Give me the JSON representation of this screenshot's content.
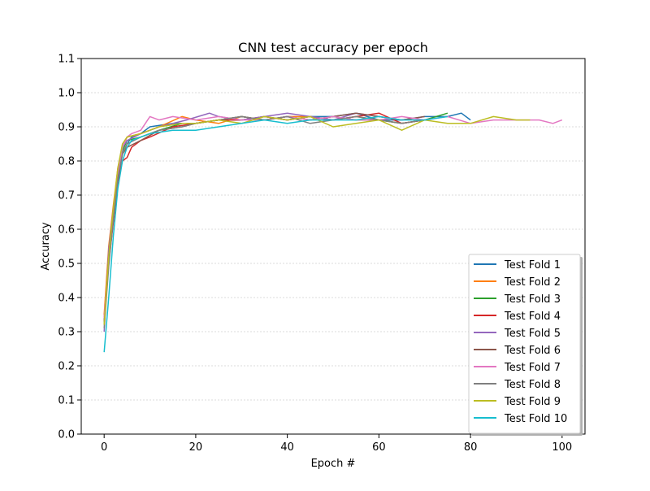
{
  "chart_data": {
    "type": "line",
    "title": "CNN test accuracy per epoch",
    "xlabel": "Epoch #",
    "ylabel": "Accuracy",
    "xlim": [
      -5,
      105
    ],
    "ylim": [
      0.0,
      1.1
    ],
    "xticks": [
      0,
      20,
      40,
      60,
      80,
      100
    ],
    "yticks": [
      0.0,
      0.1,
      0.2,
      0.3,
      0.4,
      0.5,
      0.6,
      0.7,
      0.8,
      0.9,
      1.0,
      1.1
    ],
    "grid": "horizontal dotted",
    "legend_position": "lower-right",
    "series": [
      {
        "name": "Test Fold 1",
        "color": "#1f77b4",
        "points": [
          [
            0,
            0.33
          ],
          [
            1,
            0.5
          ],
          [
            2,
            0.63
          ],
          [
            3,
            0.75
          ],
          [
            4,
            0.82
          ],
          [
            5,
            0.85
          ],
          [
            6,
            0.87
          ],
          [
            8,
            0.88
          ],
          [
            10,
            0.9
          ],
          [
            15,
            0.91
          ],
          [
            20,
            0.91
          ],
          [
            25,
            0.92
          ],
          [
            30,
            0.92
          ],
          [
            35,
            0.93
          ],
          [
            40,
            0.92
          ],
          [
            45,
            0.93
          ],
          [
            50,
            0.93
          ],
          [
            55,
            0.94
          ],
          [
            60,
            0.92
          ],
          [
            65,
            0.92
          ],
          [
            70,
            0.93
          ],
          [
            75,
            0.93
          ],
          [
            78,
            0.94
          ],
          [
            80,
            0.92
          ]
        ]
      },
      {
        "name": "Test Fold 2",
        "color": "#ff7f0e",
        "points": [
          [
            0,
            0.35
          ],
          [
            1,
            0.55
          ],
          [
            2,
            0.67
          ],
          [
            3,
            0.78
          ],
          [
            4,
            0.84
          ],
          [
            5,
            0.87
          ],
          [
            8,
            0.88
          ],
          [
            12,
            0.9
          ],
          [
            17,
            0.93
          ],
          [
            20,
            0.92
          ],
          [
            25,
            0.91
          ],
          [
            30,
            0.93
          ],
          [
            35,
            0.92
          ],
          [
            40,
            0.93
          ],
          [
            45,
            0.93
          ],
          [
            50,
            0.92
          ],
          [
            55,
            0.93
          ],
          [
            60,
            0.92
          ],
          [
            65,
            0.91
          ],
          [
            70,
            0.92
          ]
        ]
      },
      {
        "name": "Test Fold 3",
        "color": "#2ca02c",
        "points": [
          [
            0,
            0.32
          ],
          [
            1,
            0.5
          ],
          [
            2,
            0.64
          ],
          [
            3,
            0.76
          ],
          [
            4,
            0.83
          ],
          [
            5,
            0.86
          ],
          [
            8,
            0.87
          ],
          [
            12,
            0.89
          ],
          [
            17,
            0.91
          ],
          [
            20,
            0.91
          ],
          [
            25,
            0.92
          ],
          [
            30,
            0.93
          ],
          [
            35,
            0.92
          ],
          [
            40,
            0.93
          ],
          [
            45,
            0.92
          ],
          [
            50,
            0.93
          ],
          [
            55,
            0.92
          ],
          [
            60,
            0.92
          ],
          [
            65,
            0.91
          ],
          [
            70,
            0.92
          ],
          [
            75,
            0.94
          ]
        ]
      },
      {
        "name": "Test Fold 4",
        "color": "#d62728",
        "points": [
          [
            0,
            0.34
          ],
          [
            1,
            0.5
          ],
          [
            2,
            0.62
          ],
          [
            3,
            0.74
          ],
          [
            4,
            0.8
          ],
          [
            5,
            0.81
          ],
          [
            6,
            0.84
          ],
          [
            8,
            0.86
          ],
          [
            10,
            0.87
          ],
          [
            15,
            0.9
          ],
          [
            20,
            0.91
          ],
          [
            25,
            0.92
          ],
          [
            30,
            0.92
          ],
          [
            35,
            0.93
          ],
          [
            40,
            0.92
          ],
          [
            45,
            0.93
          ],
          [
            50,
            0.92
          ],
          [
            55,
            0.93
          ],
          [
            60,
            0.94
          ],
          [
            65,
            0.91
          ],
          [
            70,
            0.92
          ]
        ]
      },
      {
        "name": "Test Fold 5",
        "color": "#9467bd",
        "points": [
          [
            0,
            0.3
          ],
          [
            1,
            0.54
          ],
          [
            2,
            0.66
          ],
          [
            3,
            0.77
          ],
          [
            4,
            0.84
          ],
          [
            5,
            0.86
          ],
          [
            8,
            0.88
          ],
          [
            12,
            0.9
          ],
          [
            18,
            0.92
          ],
          [
            23,
            0.94
          ],
          [
            25,
            0.93
          ],
          [
            30,
            0.92
          ],
          [
            35,
            0.93
          ],
          [
            40,
            0.94
          ],
          [
            45,
            0.93
          ],
          [
            50,
            0.92
          ],
          [
            55,
            0.94
          ],
          [
            60,
            0.93
          ],
          [
            65,
            0.92
          ]
        ]
      },
      {
        "name": "Test Fold 6",
        "color": "#8c564b",
        "points": [
          [
            0,
            0.33
          ],
          [
            1,
            0.52
          ],
          [
            2,
            0.65
          ],
          [
            3,
            0.76
          ],
          [
            4,
            0.82
          ],
          [
            5,
            0.84
          ],
          [
            8,
            0.86
          ],
          [
            12,
            0.89
          ],
          [
            17,
            0.9
          ],
          [
            20,
            0.91
          ],
          [
            25,
            0.92
          ],
          [
            30,
            0.93
          ],
          [
            35,
            0.92
          ],
          [
            40,
            0.93
          ],
          [
            45,
            0.92
          ],
          [
            50,
            0.93
          ],
          [
            55,
            0.94
          ],
          [
            60,
            0.93
          ],
          [
            65,
            0.92
          ],
          [
            70,
            0.93
          ]
        ]
      },
      {
        "name": "Test Fold 7",
        "color": "#e377c2",
        "points": [
          [
            0,
            0.34
          ],
          [
            1,
            0.51
          ],
          [
            2,
            0.64
          ],
          [
            3,
            0.76
          ],
          [
            4,
            0.84
          ],
          [
            5,
            0.87
          ],
          [
            6,
            0.88
          ],
          [
            8,
            0.89
          ],
          [
            10,
            0.93
          ],
          [
            12,
            0.92
          ],
          [
            15,
            0.93
          ],
          [
            20,
            0.92
          ],
          [
            25,
            0.93
          ],
          [
            30,
            0.92
          ],
          [
            35,
            0.92
          ],
          [
            40,
            0.93
          ],
          [
            45,
            0.92
          ],
          [
            50,
            0.93
          ],
          [
            55,
            0.92
          ],
          [
            60,
            0.92
          ],
          [
            65,
            0.93
          ],
          [
            70,
            0.92
          ],
          [
            75,
            0.93
          ],
          [
            80,
            0.91
          ],
          [
            85,
            0.92
          ],
          [
            90,
            0.92
          ],
          [
            95,
            0.92
          ],
          [
            98,
            0.91
          ],
          [
            100,
            0.92
          ]
        ]
      },
      {
        "name": "Test Fold 8",
        "color": "#7f7f7f",
        "points": [
          [
            0,
            0.31
          ],
          [
            1,
            0.49
          ],
          [
            2,
            0.63
          ],
          [
            3,
            0.75
          ],
          [
            4,
            0.82
          ],
          [
            5,
            0.85
          ],
          [
            8,
            0.87
          ],
          [
            12,
            0.89
          ],
          [
            17,
            0.9
          ],
          [
            20,
            0.91
          ],
          [
            25,
            0.92
          ],
          [
            30,
            0.93
          ],
          [
            35,
            0.92
          ],
          [
            40,
            0.93
          ],
          [
            45,
            0.91
          ],
          [
            50,
            0.92
          ],
          [
            55,
            0.93
          ],
          [
            60,
            0.92
          ],
          [
            65,
            0.91
          ],
          [
            70,
            0.92
          ]
        ]
      },
      {
        "name": "Test Fold 9",
        "color": "#bcbd22",
        "points": [
          [
            0,
            0.32
          ],
          [
            1,
            0.52
          ],
          [
            2,
            0.66
          ],
          [
            3,
            0.78
          ],
          [
            4,
            0.85
          ],
          [
            5,
            0.87
          ],
          [
            8,
            0.88
          ],
          [
            12,
            0.9
          ],
          [
            17,
            0.91
          ],
          [
            20,
            0.91
          ],
          [
            25,
            0.92
          ],
          [
            30,
            0.91
          ],
          [
            35,
            0.93
          ],
          [
            40,
            0.92
          ],
          [
            45,
            0.93
          ],
          [
            50,
            0.9
          ],
          [
            55,
            0.91
          ],
          [
            60,
            0.92
          ],
          [
            65,
            0.89
          ],
          [
            70,
            0.92
          ],
          [
            75,
            0.91
          ],
          [
            80,
            0.91
          ],
          [
            85,
            0.93
          ],
          [
            90,
            0.92
          ],
          [
            93,
            0.92
          ]
        ]
      },
      {
        "name": "Test Fold 10",
        "color": "#17becf",
        "points": [
          [
            0,
            0.24
          ],
          [
            1,
            0.4
          ],
          [
            2,
            0.58
          ],
          [
            3,
            0.72
          ],
          [
            4,
            0.8
          ],
          [
            5,
            0.84
          ],
          [
            6,
            0.86
          ],
          [
            8,
            0.87
          ],
          [
            10,
            0.88
          ],
          [
            15,
            0.89
          ],
          [
            20,
            0.89
          ],
          [
            25,
            0.9
          ],
          [
            30,
            0.91
          ],
          [
            35,
            0.92
          ],
          [
            40,
            0.91
          ],
          [
            45,
            0.92
          ],
          [
            50,
            0.92
          ],
          [
            55,
            0.92
          ],
          [
            60,
            0.93
          ],
          [
            65,
            0.92
          ],
          [
            70,
            0.92
          ],
          [
            75,
            0.93
          ]
        ]
      }
    ]
  }
}
